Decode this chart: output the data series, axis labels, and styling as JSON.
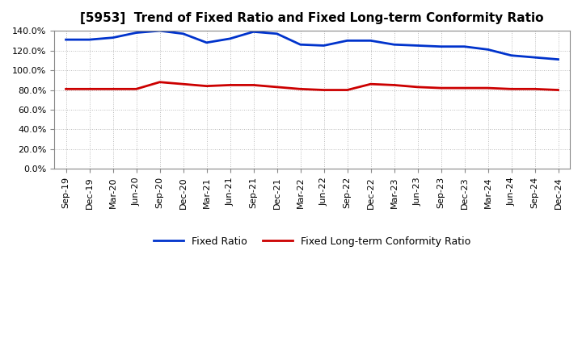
{
  "title": "[5953]  Trend of Fixed Ratio and Fixed Long-term Conformity Ratio",
  "x_labels": [
    "Sep-19",
    "Dec-19",
    "Mar-20",
    "Jun-20",
    "Sep-20",
    "Dec-20",
    "Mar-21",
    "Jun-21",
    "Sep-21",
    "Dec-21",
    "Mar-22",
    "Jun-22",
    "Sep-22",
    "Dec-22",
    "Mar-23",
    "Jun-23",
    "Sep-23",
    "Dec-23",
    "Mar-24",
    "Jun-24",
    "Sep-24",
    "Dec-24"
  ],
  "fixed_ratio": [
    131,
    131,
    133,
    138,
    140,
    137,
    128,
    132,
    139,
    137,
    126,
    125,
    130,
    130,
    126,
    125,
    124,
    124,
    121,
    115,
    113,
    111
  ],
  "fixed_lt_ratio": [
    81,
    81,
    81,
    81,
    88,
    86,
    84,
    85,
    85,
    83,
    81,
    80,
    80,
    86,
    85,
    83,
    82,
    82,
    82,
    81,
    81,
    80
  ],
  "yticks": [
    0,
    20,
    40,
    60,
    80,
    100,
    120,
    140
  ],
  "fixed_ratio_color": "#0033CC",
  "fixed_lt_ratio_color": "#CC0000",
  "background_color": "#ffffff",
  "grid_color": "#bbbbbb",
  "legend_fixed_ratio": "Fixed Ratio",
  "legend_fixed_lt_ratio": "Fixed Long-term Conformity Ratio"
}
